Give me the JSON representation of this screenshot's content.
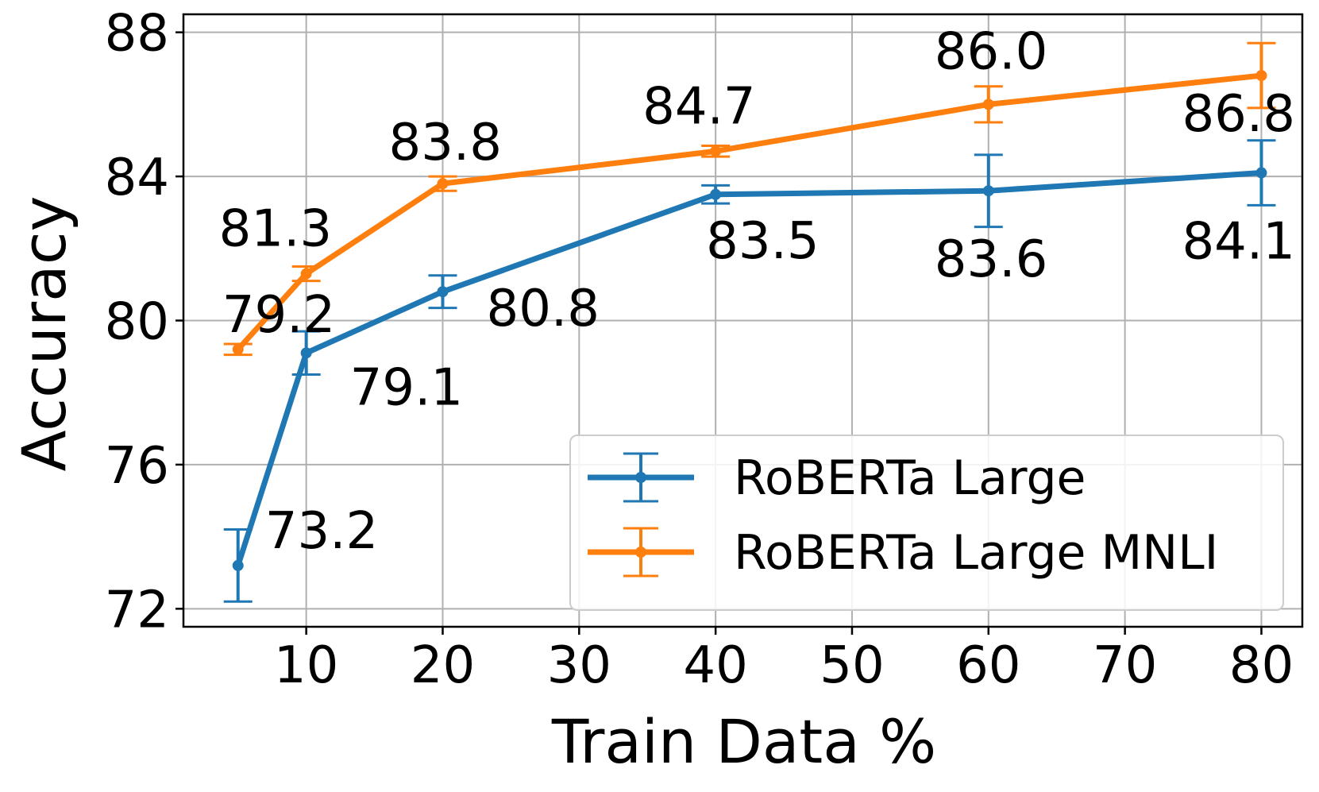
{
  "chart_data": {
    "type": "line",
    "title": "",
    "xlabel": "Train Data %",
    "ylabel": "Accuracy",
    "xlim": [
      1,
      83
    ],
    "ylim": [
      71.5,
      88.5
    ],
    "xticks": [
      10,
      20,
      30,
      40,
      50,
      60,
      70,
      80
    ],
    "yticks": [
      72,
      76,
      80,
      84,
      88
    ],
    "grid": true,
    "legend_position": "lower-right",
    "series": [
      {
        "name": "RoBERTa Large",
        "color": "#1f77b4",
        "x": [
          5,
          10,
          20,
          40,
          60,
          80
        ],
        "y": [
          73.2,
          79.1,
          80.8,
          83.5,
          83.6,
          84.1
        ],
        "yerr": [
          1.0,
          0.6,
          0.45,
          0.25,
          1.0,
          0.9
        ],
        "labels": [
          "73.2",
          "79.1",
          "80.8",
          "83.5",
          "83.6",
          "84.1"
        ]
      },
      {
        "name": "RoBERTa Large MNLI",
        "color": "#ff7f0e",
        "x": [
          5,
          10,
          20,
          40,
          60,
          80
        ],
        "y": [
          79.2,
          81.3,
          83.8,
          84.7,
          86.0,
          86.8
        ],
        "yerr": [
          0.15,
          0.2,
          0.2,
          0.15,
          0.5,
          0.9
        ],
        "labels": [
          "79.2",
          "81.3",
          "83.8",
          "84.7",
          "86.0",
          "86.8"
        ]
      }
    ]
  }
}
